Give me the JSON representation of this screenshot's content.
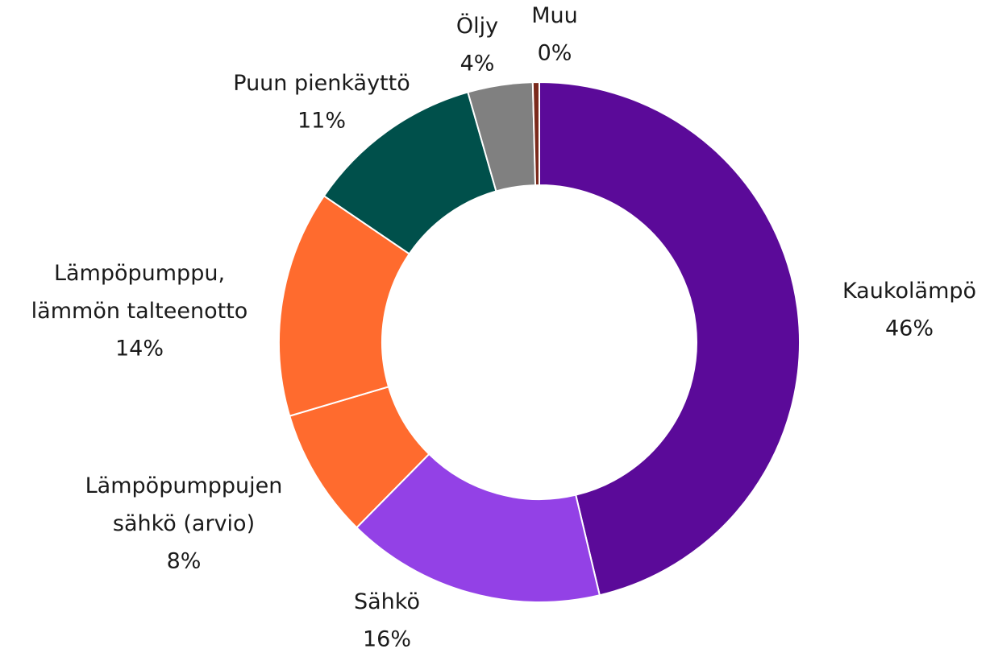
{
  "chart_data": {
    "type": "donut",
    "categories": [
      "Kaukolämpö",
      "Sähkö",
      "Lämpöpumppujen\nsähkö (arvio)",
      "Lämpöpumppu,\nlämmön talteenotto",
      "Puun pienkäyttö",
      "Öljy",
      "Muu"
    ],
    "values": [
      46,
      16,
      8,
      14,
      11,
      4,
      0.4
    ],
    "value_labels": [
      "46%",
      "16%",
      "8%",
      "14%",
      "11%",
      "4%",
      "0%"
    ],
    "colors": [
      "#5b0a99",
      "#9341e6",
      "#ff6b2e",
      "#ff6b2e",
      "#00504b",
      "#808080",
      "#7b2a1c"
    ]
  }
}
